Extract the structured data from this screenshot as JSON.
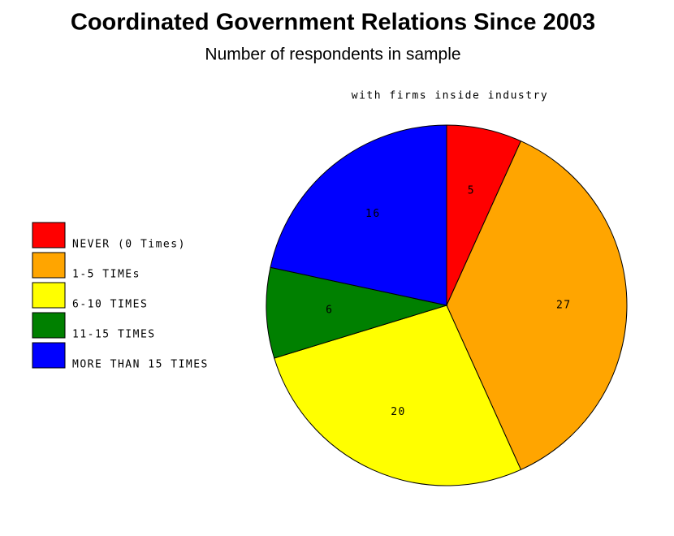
{
  "chart_data": {
    "type": "pie",
    "title": "Coordinated Government Relations Since 2003",
    "subtitle": "Number of respondents in sample",
    "pie_label": "with firms inside industry",
    "categories": [
      "NEVER (0 Times)",
      "1-5 TIMEs",
      "6-10 TIMES",
      "11-15 TIMES",
      "MORE THAN 15 TIMES"
    ],
    "values": [
      5,
      27,
      20,
      6,
      16
    ],
    "colors": [
      "#ff0000",
      "#ffa500",
      "#ffff00",
      "#008000",
      "#0000ff"
    ],
    "legend": "left"
  }
}
